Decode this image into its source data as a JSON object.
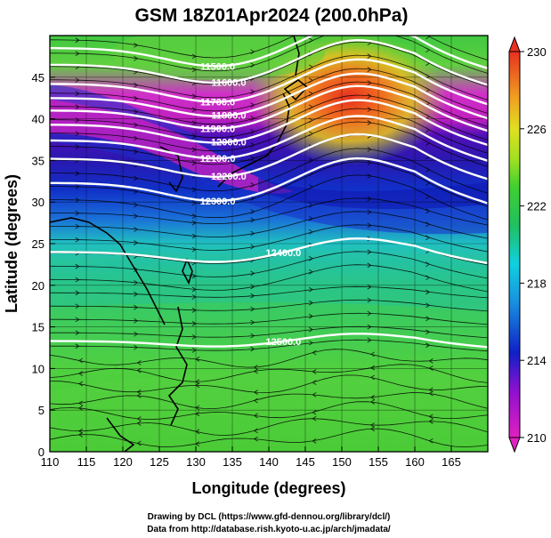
{
  "title": "GSM 18Z01Apr2024 (200.0hPa)",
  "x_axis": {
    "label": "Longitude (degrees)",
    "range": [
      110,
      170
    ],
    "ticks": [
      110,
      115,
      120,
      125,
      130,
      135,
      140,
      145,
      150,
      155,
      160,
      165
    ]
  },
  "y_axis": {
    "label": "Latitude  (degrees)",
    "range": [
      0,
      50
    ],
    "ticks": [
      0,
      5,
      10,
      15,
      20,
      25,
      30,
      35,
      40,
      45
    ]
  },
  "colorbar": {
    "range": [
      210,
      230
    ],
    "ticks": [
      210,
      214,
      218,
      222,
      226,
      230
    ]
  },
  "credits": {
    "line1": "Drawing by DCL (https://www.gfd-dennou.org/library/dcl/)",
    "line2": "Data from http://database.rish.kyoto-u.ac.jp/arch/jmadata/"
  },
  "contours": [
    {
      "label": "11500.0",
      "lat": 48.5
    },
    {
      "label": "11600.0",
      "lat": 46.5
    },
    {
      "label": "11700.0",
      "lat": 44.2
    },
    {
      "label": "11800.0",
      "lat": 42.5
    },
    {
      "label": "11900.0",
      "lat": 41.0
    },
    {
      "label": "12000.0",
      "lat": 39.3
    },
    {
      "label": "12100.0",
      "lat": 37.4
    },
    {
      "label": "12200.0",
      "lat": 35.2
    },
    {
      "label": "12300.0",
      "lat": 32.3
    },
    {
      "label": "12400.0",
      "lat": 24.0
    },
    {
      "label": "12500.0",
      "lat": 13.3
    }
  ],
  "colors": {
    "magenta": "#e020c0",
    "blue": "#1028c8",
    "cyan": "#10c0e0",
    "green": "#30c830",
    "yellow": "#d8e020",
    "orange": "#f08020",
    "red": "#e02020",
    "contour": "#ffffff"
  }
}
